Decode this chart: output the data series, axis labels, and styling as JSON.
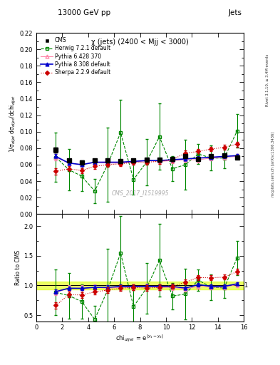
{
  "title_top": "13000 GeV pp",
  "title_right": "Jets",
  "subplot_title": "χ (jets) (2400 < Mjj < 3000)",
  "watermark": "CMS_2017_I1519995",
  "right_label_top": "Rivet 3.1.10, ≥ 3.4M events",
  "right_label_bot": "mcplots.cern.ch [arXiv:1306.3436]",
  "ylabel_main": "1/σ$_{dijet}$ dσ$_{dijet}$/dchi$_{dijet}$",
  "ylabel_ratio": "Ratio to CMS",
  "xlabel": "chi$_{dijet}$ = e$^{|y_1 - y_2|}$",
  "xlim": [
    0,
    16
  ],
  "ylim_main": [
    0,
    0.22
  ],
  "ylim_ratio": [
    0.4,
    2.2
  ],
  "yticks_main": [
    0.0,
    0.02,
    0.04,
    0.06,
    0.08,
    0.1,
    0.12,
    0.14,
    0.16,
    0.18,
    0.2,
    0.22
  ],
  "yticks_ratio": [
    0.5,
    1.0,
    1.5,
    2.0
  ],
  "xticks": [
    0,
    2,
    4,
    6,
    8,
    10,
    12,
    14,
    16
  ],
  "cms_x": [
    1.5,
    2.5,
    3.5,
    4.5,
    5.5,
    6.5,
    7.5,
    8.5,
    9.5,
    10.5,
    11.5,
    12.5,
    13.5,
    14.5,
    15.5
  ],
  "cms_y": [
    0.078,
    0.065,
    0.063,
    0.065,
    0.065,
    0.064,
    0.065,
    0.066,
    0.066,
    0.067,
    0.07,
    0.067,
    0.07,
    0.071,
    0.069
  ],
  "cms_yerr": [
    0.003,
    0.002,
    0.002,
    0.002,
    0.002,
    0.002,
    0.002,
    0.002,
    0.002,
    0.002,
    0.002,
    0.002,
    0.002,
    0.002,
    0.002
  ],
  "herwig_x": [
    1.5,
    2.5,
    3.5,
    4.5,
    5.5,
    6.5,
    7.5,
    8.5,
    9.5,
    10.5,
    11.5,
    12.5,
    13.5,
    14.5,
    15.5
  ],
  "herwig_y": [
    0.069,
    0.054,
    0.046,
    0.028,
    0.06,
    0.099,
    0.042,
    0.063,
    0.094,
    0.055,
    0.06,
    0.073,
    0.068,
    0.068,
    0.101
  ],
  "herwig_yerr": [
    0.03,
    0.025,
    0.018,
    0.015,
    0.045,
    0.04,
    0.018,
    0.028,
    0.04,
    0.015,
    0.03,
    0.012,
    0.015,
    0.012,
    0.02
  ],
  "pythia6_x": [
    1.5,
    2.5,
    3.5,
    4.5,
    5.5,
    6.5,
    7.5,
    8.5,
    9.5,
    10.5,
    11.5,
    12.5,
    13.5,
    14.5,
    15.5
  ],
  "pythia6_y": [
    0.069,
    0.062,
    0.06,
    0.063,
    0.062,
    0.062,
    0.063,
    0.065,
    0.064,
    0.065,
    0.066,
    0.066,
    0.068,
    0.069,
    0.07
  ],
  "pythia6_yerr": [
    0.004,
    0.003,
    0.003,
    0.003,
    0.003,
    0.003,
    0.003,
    0.003,
    0.003,
    0.003,
    0.003,
    0.003,
    0.003,
    0.003,
    0.003
  ],
  "pythia8_x": [
    1.5,
    2.5,
    3.5,
    4.5,
    5.5,
    6.5,
    7.5,
    8.5,
    9.5,
    10.5,
    11.5,
    12.5,
    13.5,
    14.5,
    15.5
  ],
  "pythia8_y": [
    0.07,
    0.062,
    0.06,
    0.063,
    0.063,
    0.063,
    0.064,
    0.065,
    0.065,
    0.066,
    0.067,
    0.068,
    0.069,
    0.07,
    0.071
  ],
  "pythia8_yerr": [
    0.003,
    0.002,
    0.002,
    0.002,
    0.002,
    0.002,
    0.002,
    0.002,
    0.002,
    0.002,
    0.002,
    0.002,
    0.002,
    0.002,
    0.002
  ],
  "sherpa_x": [
    1.5,
    2.5,
    3.5,
    4.5,
    5.5,
    6.5,
    7.5,
    8.5,
    9.5,
    10.5,
    11.5,
    12.5,
    13.5,
    14.5,
    15.5
  ],
  "sherpa_y": [
    0.052,
    0.055,
    0.053,
    0.058,
    0.06,
    0.061,
    0.063,
    0.063,
    0.064,
    0.066,
    0.074,
    0.076,
    0.079,
    0.081,
    0.085
  ],
  "sherpa_yerr": [
    0.004,
    0.003,
    0.003,
    0.003,
    0.003,
    0.003,
    0.003,
    0.003,
    0.003,
    0.003,
    0.003,
    0.003,
    0.003,
    0.003,
    0.003
  ],
  "cms_color": "#000000",
  "herwig_color": "#008800",
  "pythia6_color": "#ff88aa",
  "pythia8_color": "#0000cc",
  "sherpa_color": "#cc0000",
  "shaded_band_color": "#ddff00",
  "shaded_band_alpha": 0.6,
  "shaded_band_ylo": 0.93,
  "shaded_band_yhi": 1.07
}
